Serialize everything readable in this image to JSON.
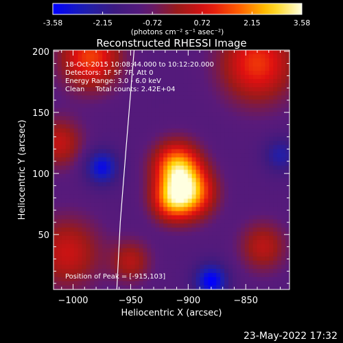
{
  "chart_data": {
    "type": "heatmap",
    "title": "Reconstructed RHESSI Image",
    "xlabel": "Heliocentric X (arcsec)",
    "ylabel": "Heliocentric Y (arcsec)",
    "xlim": [
      -1017,
      -812
    ],
    "ylim": [
      5,
      201
    ],
    "x_ticks": [
      -1000,
      -950,
      -900,
      -850
    ],
    "y_ticks": [
      50,
      100,
      150,
      200
    ],
    "colorbar": {
      "range": [
        -3.58,
        3.58
      ],
      "ticks": [
        "-3.58",
        "-2.15",
        "-0.72",
        "0.72",
        "2.15",
        "3.58"
      ],
      "units": "(photons cm⁻² s⁻¹ asec⁻²)",
      "colormap": [
        "#0000ff",
        "#1d1fb0",
        "#3d1a80",
        "#5a1a7a",
        "#9a1a1a",
        "#e01010",
        "#ff6000",
        "#ffd000",
        "#ffffe0"
      ]
    },
    "limb_points": [
      [
        -962,
        5
      ],
      [
        -959,
        60
      ],
      [
        -954,
        120
      ],
      [
        -947,
        201
      ]
    ],
    "sources": [
      {
        "x": -910,
        "y": 105,
        "sigma": 14,
        "amp": 3.5
      },
      {
        "x": -897,
        "y": 84,
        "sigma": 14,
        "amp": 3.1
      },
      {
        "x": -915,
        "y": 78,
        "sigma": 12,
        "amp": 2.6
      },
      {
        "x": -985,
        "y": 195,
        "sigma": 18,
        "amp": 2.5
      },
      {
        "x": -840,
        "y": 190,
        "sigma": 22,
        "amp": 2.4
      },
      {
        "x": -1012,
        "y": 125,
        "sigma": 14,
        "amp": 1.6
      },
      {
        "x": -1005,
        "y": 35,
        "sigma": 20,
        "amp": 1.7
      },
      {
        "x": -950,
        "y": 28,
        "sigma": 12,
        "amp": 1.4
      },
      {
        "x": -835,
        "y": 40,
        "sigma": 14,
        "amp": 1.5
      },
      {
        "x": -975,
        "y": 105,
        "sigma": 10,
        "amp": -2.2
      },
      {
        "x": -880,
        "y": 12,
        "sigma": 10,
        "amp": -2.5
      },
      {
        "x": -820,
        "y": 115,
        "sigma": 10,
        "amp": -1.4
      }
    ],
    "baseline": -1.1
  },
  "info": {
    "time_range": "18-Oct-2015 10:08:44.000 to 10:12:20.000",
    "detectors": "Detectors: 1F 5F 7F, Att 0",
    "energy": "Energy Range: 3.0 - 6.0 keV",
    "method": "Clean     Total counts: 2.42E+04",
    "peak": "Position of Peak = [-915,103]"
  },
  "timestamp": "23-May-2022 17:32"
}
